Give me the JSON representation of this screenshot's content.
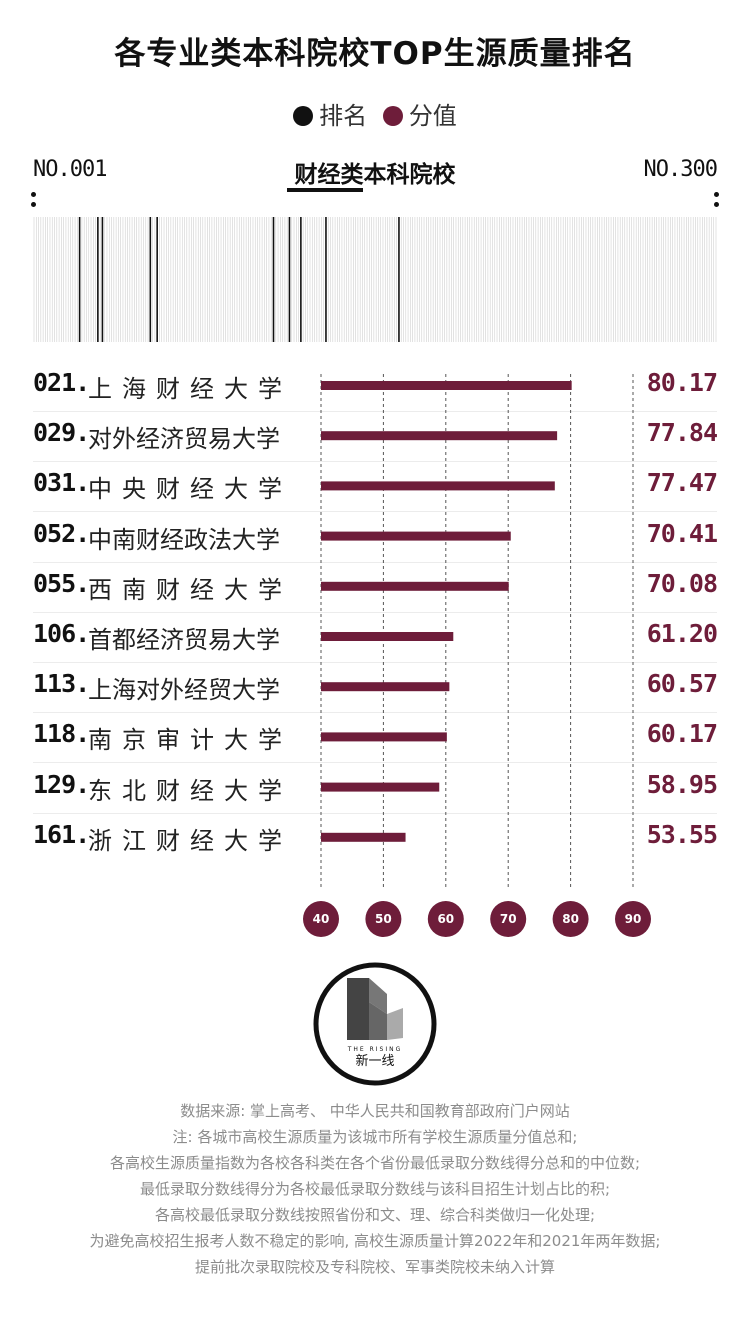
{
  "title": "各专业类本科院校TOP生源质量排名",
  "legend": [
    {
      "label": "排名",
      "color": "#111111"
    },
    {
      "label": "分值",
      "color": "#6e1d3a"
    }
  ],
  "rank_start": "NO.001",
  "rank_end": "NO.300",
  "category": "财经类本科院校",
  "chart_data": {
    "type": "bar",
    "orientation": "horizontal",
    "categories": [
      "上海财经大学",
      "对外经济贸易大学",
      "中央财经大学",
      "中南财经政法大学",
      "西南财经大学",
      "首都经济贸易大学",
      "上海对外经贸大学",
      "南京审计大学",
      "东北财经大学",
      "浙江财经大学"
    ],
    "ranks": [
      "021.",
      "029.",
      "031.",
      "052.",
      "055.",
      "106.",
      "113.",
      "118.",
      "129.",
      "161."
    ],
    "values": [
      80.17,
      77.84,
      77.47,
      70.41,
      70.08,
      61.2,
      60.57,
      60.17,
      58.95,
      53.55
    ],
    "value_labels": [
      "80.17",
      "77.84",
      "77.47",
      "70.41",
      "70.08",
      "61.20",
      "60.57",
      "60.17",
      "58.95",
      "53.55"
    ],
    "xlim": [
      40,
      90
    ],
    "xticks": [
      "40",
      "50",
      "60",
      "70",
      "80",
      "90"
    ],
    "bar_color": "#6e1d3a",
    "grid": "dashed vertical",
    "rank_strip": {
      "range": [
        1,
        300
      ],
      "highlighted_ranks": [
        21,
        29,
        31,
        52,
        55,
        106,
        113,
        118,
        129,
        161
      ]
    }
  },
  "logo": {
    "text_top": "THE RISING",
    "text_bottom": "新一线"
  },
  "notes": [
    "数据来源: 掌上高考、 中华人民共和国教育部政府门户网站",
    "注: 各城市高校生源质量为该城市所有学校生源质量分值总和;",
    "各高校生源质量指数为各校各科类在各个省份最低录取分数线得分总和的中位数;",
    "最低录取分数线得分为各校最低录取分数线与该科目招生计划占比的积;",
    "各高校最低录取分数线按照省份和文、理、综合科类做归一化处理;",
    "为避免高校招生报考人数不稳定的影响, 高校生源质量计算2022年和2021年两年数据;",
    "提前批次录取院校及专科院校、军事类院校未纳入计算"
  ]
}
